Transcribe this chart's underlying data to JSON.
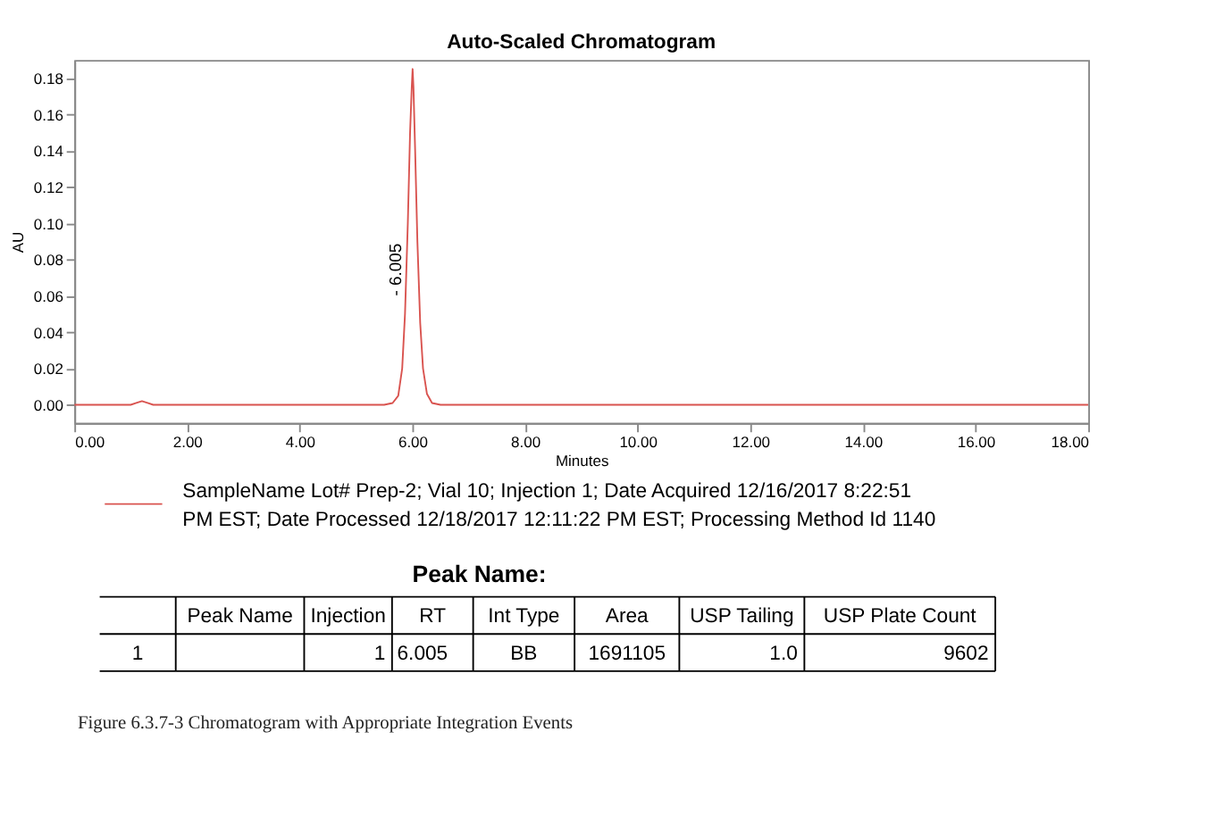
{
  "chart_data": {
    "type": "line",
    "title": "Auto-Scaled Chromatogram",
    "xlabel": "Minutes",
    "ylabel": "AU",
    "x": [
      0,
      0.5,
      1.0,
      1.1,
      1.2,
      1.3,
      1.4,
      2.0,
      4.0,
      5.5,
      5.65,
      5.75,
      5.82,
      5.87,
      5.92,
      5.96,
      5.99,
      6.005,
      6.02,
      6.05,
      6.09,
      6.14,
      6.19,
      6.26,
      6.35,
      6.5,
      8.0,
      12.0,
      18.0
    ],
    "series": [
      {
        "name": "SampleName Lot# Prep-2; Vial 10; Injection 1; Date Acquired 12/16/2017 8:22:51 PM EST; Date Processed 12/18/2017 12:11:22 PM EST; Processing Method Id 1140",
        "color": "#d9534f",
        "values": [
          0,
          0,
          0,
          0.001,
          0.002,
          0.001,
          0,
          0,
          0,
          0,
          0.001,
          0.005,
          0.02,
          0.05,
          0.1,
          0.15,
          0.175,
          0.185,
          0.175,
          0.14,
          0.09,
          0.045,
          0.02,
          0.006,
          0.001,
          0,
          0,
          0,
          0
        ]
      }
    ],
    "xlim": [
      0,
      18
    ],
    "xticks": [
      {
        "value": 0,
        "label": "0.00"
      },
      {
        "value": 2,
        "label": "2.00"
      },
      {
        "value": 4,
        "label": "4.00"
      },
      {
        "value": 6,
        "label": "6.00"
      },
      {
        "value": 8,
        "label": "8.00"
      },
      {
        "value": 10,
        "label": "10.00"
      },
      {
        "value": 12,
        "label": "12.00"
      },
      {
        "value": 14,
        "label": "14.00"
      },
      {
        "value": 16,
        "label": "16.00"
      },
      {
        "value": 18,
        "label": "18.00"
      }
    ],
    "ylim": [
      -0.01,
      0.19
    ],
    "yticks": [
      {
        "value": 0,
        "label": "0.00"
      },
      {
        "value": 0.02,
        "label": "0.02"
      },
      {
        "value": 0.04,
        "label": "0.04"
      },
      {
        "value": 0.06,
        "label": "0.06"
      },
      {
        "value": 0.08,
        "label": "0.08"
      },
      {
        "value": 0.1,
        "label": "0.10"
      },
      {
        "value": 0.12,
        "label": "0.12"
      },
      {
        "value": 0.14,
        "label": "0.14"
      },
      {
        "value": 0.16,
        "label": "0.16"
      },
      {
        "value": 0.18,
        "label": "0.18"
      }
    ],
    "grid": false,
    "legend": "bottom",
    "marker": "none",
    "line_style": "solid",
    "annotations": [
      {
        "text": "- 6.005",
        "x": 6.005,
        "y": 0.06
      },
      "Peak Name:",
      "Peak Name",
      "Injection",
      "RT",
      "Int Type",
      "Area",
      "USP Tailing",
      "USP Plate Count",
      "1",
      "1",
      "6.005",
      "BB",
      "1691105",
      "1.0",
      "9602",
      "Figure 6.3.7-3  Chromatogram with Appropriate Integration Events"
    ]
  }
}
